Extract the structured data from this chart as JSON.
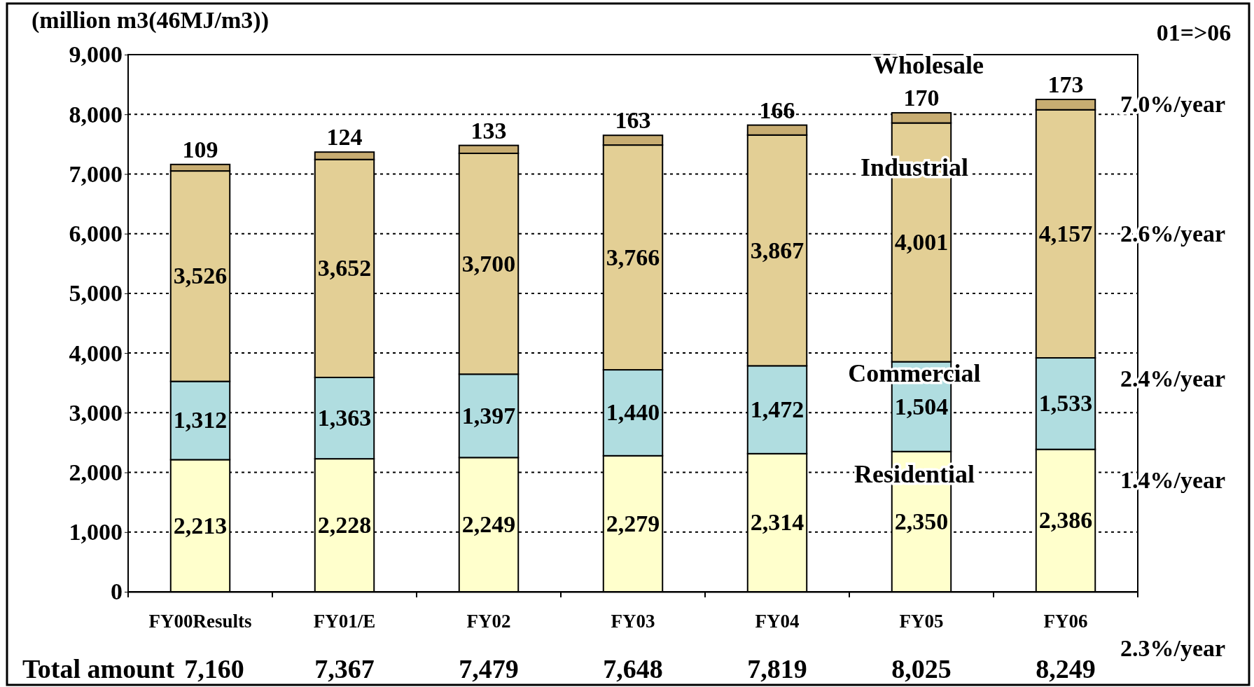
{
  "chart_data": {
    "type": "bar",
    "stacked": true,
    "ylabel": "(million m3(46MJ/m3))",
    "categories": [
      "FY00Results",
      "FY01/E",
      "FY02",
      "FY03",
      "FY04",
      "FY05",
      "FY06"
    ],
    "series": [
      {
        "name": "Residential",
        "color": "#ffffcc",
        "values": [
          2213,
          2228,
          2249,
          2279,
          2314,
          2350,
          2386
        ],
        "value_labels": [
          "2,213",
          "2,228",
          "2,249",
          "2,279",
          "2,314",
          "2,350",
          "2,386"
        ]
      },
      {
        "name": "Commercial",
        "color": "#b0dde0",
        "values": [
          1312,
          1363,
          1397,
          1440,
          1472,
          1504,
          1533
        ],
        "value_labels": [
          "1,312",
          "1,363",
          "1,397",
          "1,440",
          "1,472",
          "1,504",
          "1,533"
        ]
      },
      {
        "name": "Industrial",
        "color": "#e3cf95",
        "values": [
          3526,
          3652,
          3700,
          3766,
          3867,
          4001,
          4157
        ],
        "value_labels": [
          "3,526",
          "3,652",
          "3,700",
          "3,766",
          "3,867",
          "4,001",
          "4,157"
        ]
      },
      {
        "name": "Wholesale",
        "color": "#c8ad72",
        "values": [
          109,
          124,
          133,
          163,
          166,
          170,
          173
        ],
        "value_labels": [
          "109",
          "124",
          "133",
          "163",
          "166",
          "170",
          "173"
        ]
      }
    ],
    "ylim": [
      0,
      9000
    ],
    "yticks": [
      {
        "value": 0,
        "label": "0"
      },
      {
        "value": 1000,
        "label": "1,000"
      },
      {
        "value": 2000,
        "label": "2,000"
      },
      {
        "value": 3000,
        "label": "3,000"
      },
      {
        "value": 4000,
        "label": "4,000"
      },
      {
        "value": 5000,
        "label": "5,000"
      },
      {
        "value": 6000,
        "label": "6,000"
      },
      {
        "value": 7000,
        "label": "7,000"
      },
      {
        "value": 8000,
        "label": "8,000"
      },
      {
        "value": 9000,
        "label": "9,000"
      }
    ],
    "grid": "y",
    "totals": [
      "7,160",
      "7,367",
      "7,479",
      "7,648",
      "7,819",
      "8,025",
      "8,249"
    ],
    "annotations": [
      "Total amount",
      "01=>06",
      "7.0%/year",
      "2.6%/year",
      "2.4%/year",
      "1.4%/year",
      "2.3%/year"
    ]
  }
}
